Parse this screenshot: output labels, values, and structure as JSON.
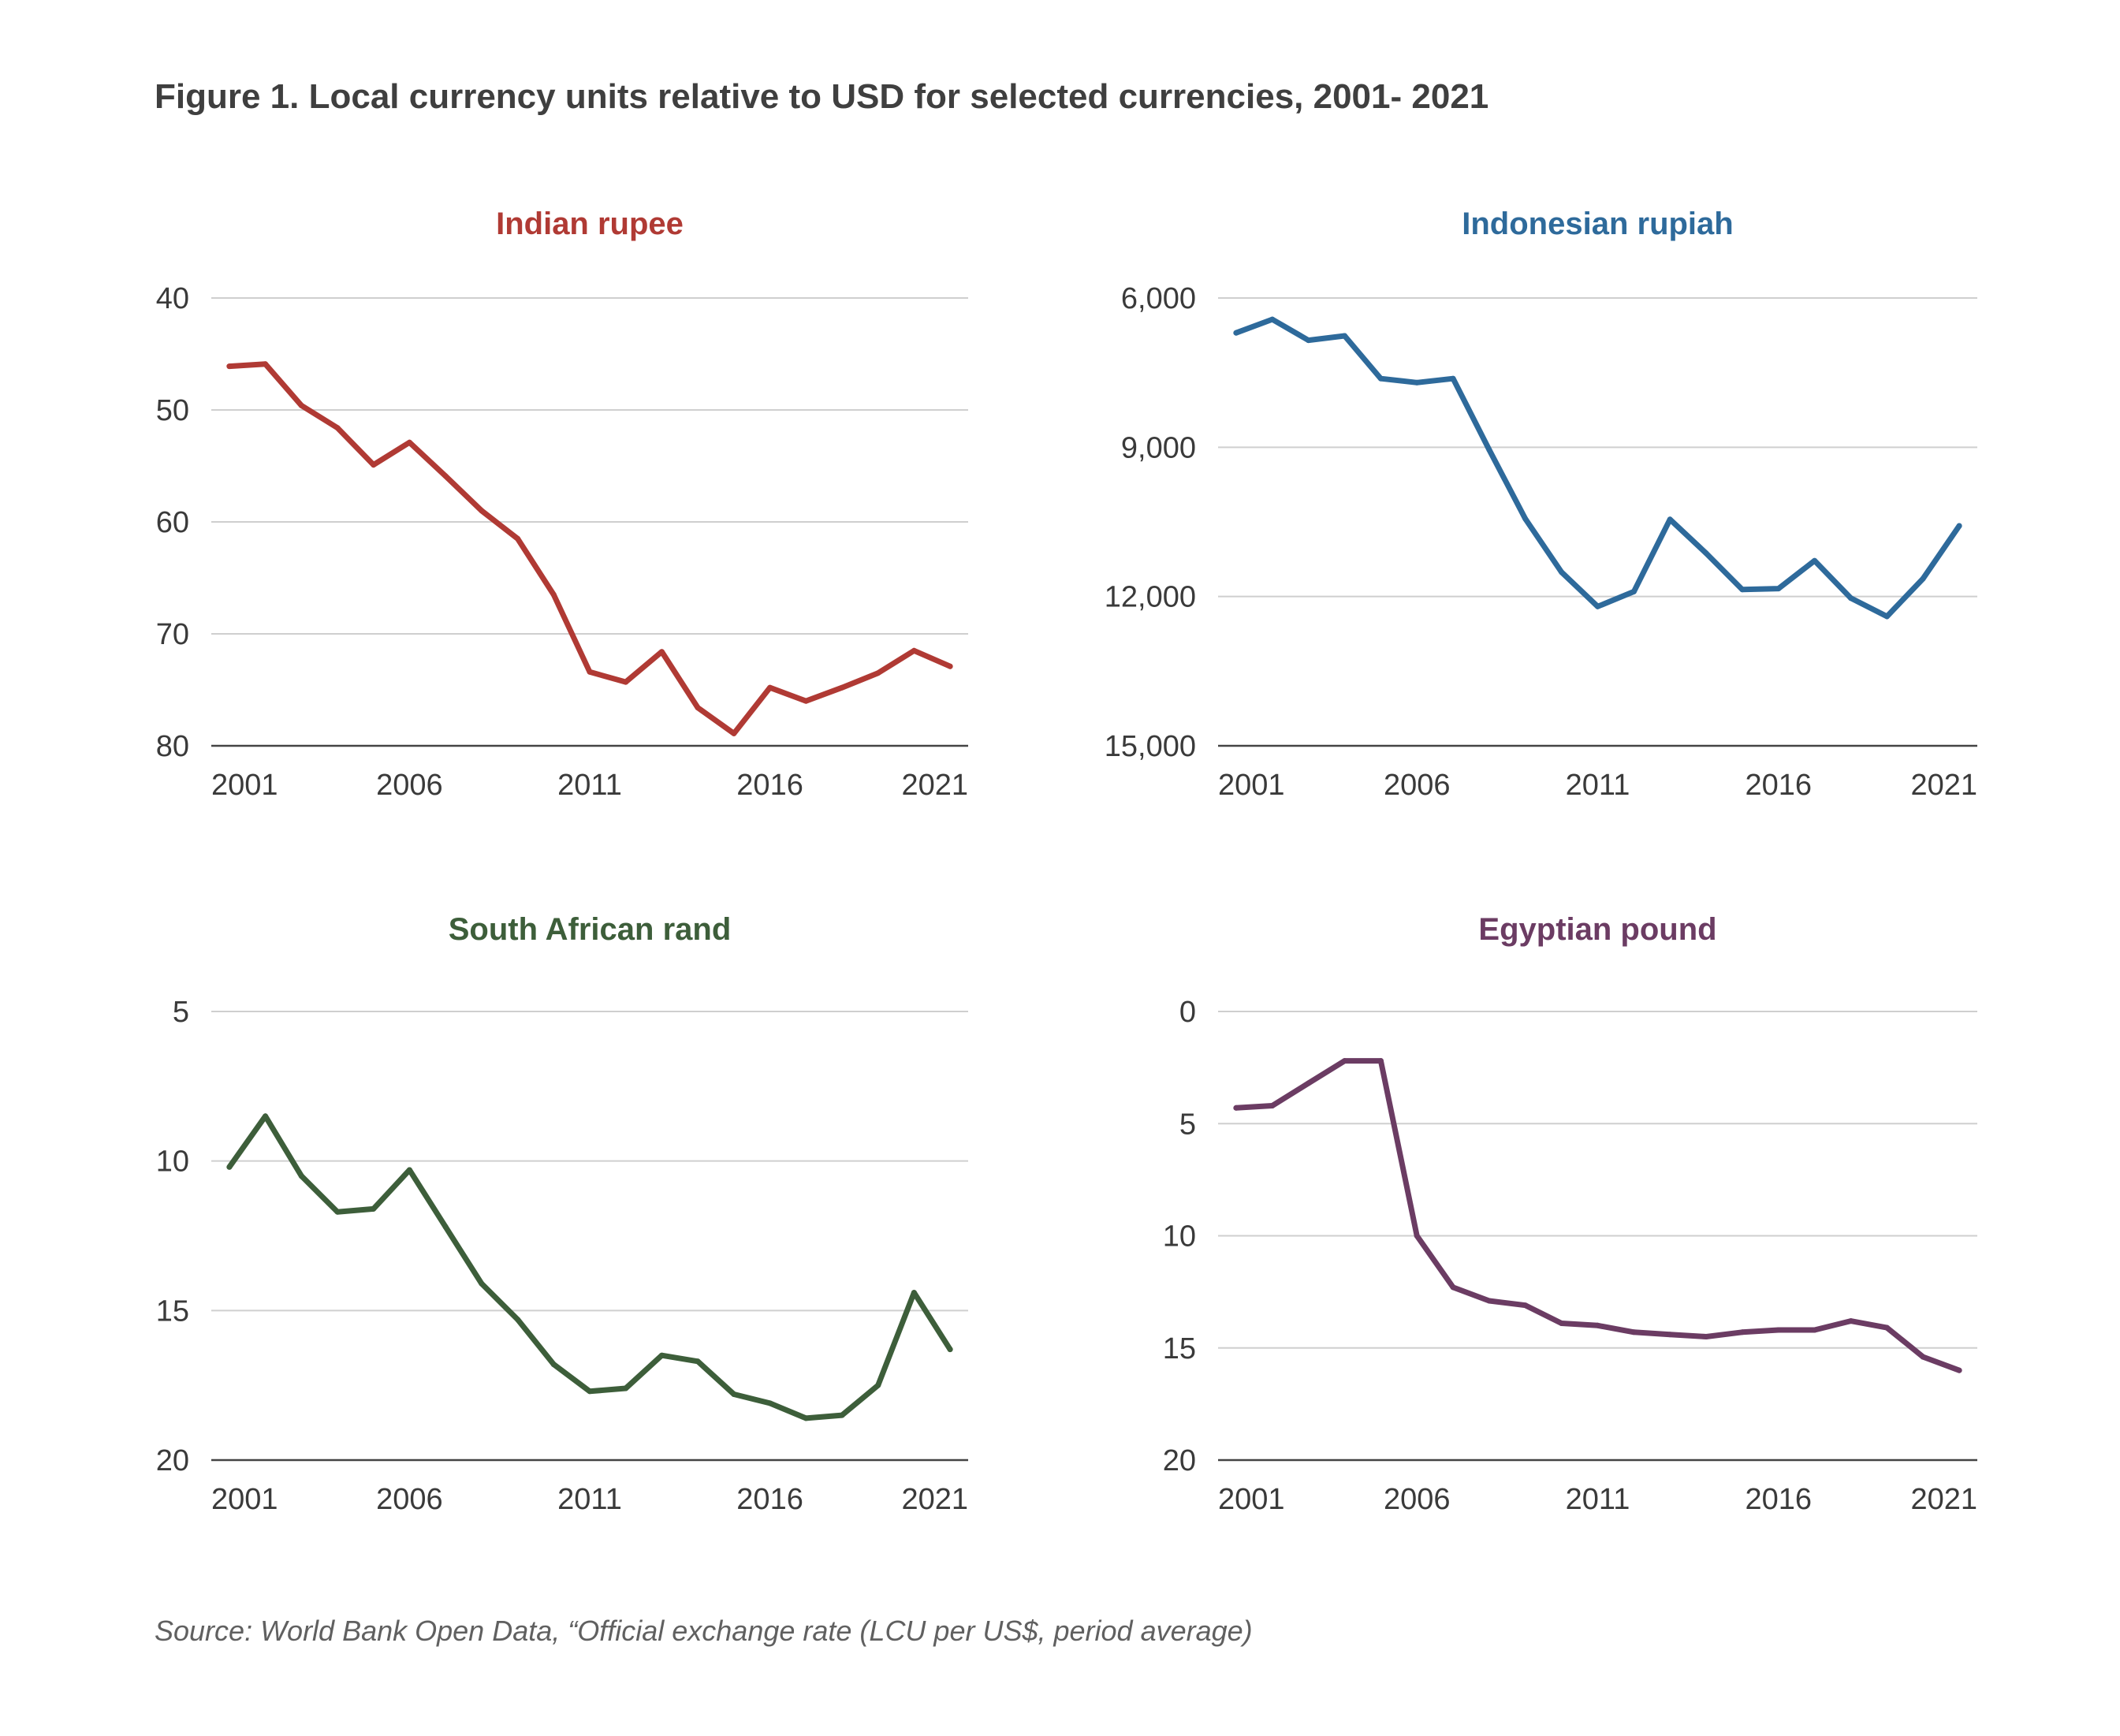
{
  "title": "Figure 1. Local currency units relative to USD for selected currencies, 2001- 2021",
  "source": "Source: World Bank Open Data, “Official exchange rate (LCU per US$, period average)",
  "chart_data": [
    {
      "type": "line",
      "title": "Indian rupee",
      "color": "#b03a34",
      "inverted_y": true,
      "ylim": [
        40,
        80
      ],
      "yticks": [
        40,
        50,
        60,
        70,
        80
      ],
      "ytick_labels": [
        "40",
        "50",
        "60",
        "70",
        "80"
      ],
      "xlim": [
        2000.5,
        2021.5
      ],
      "xticks": [
        2001,
        2006,
        2011,
        2016,
        2021
      ],
      "xtick_labels": [
        "2001",
        "2006",
        "2011",
        "2016",
        "2021"
      ],
      "grid": true,
      "x": [
        2001,
        2002,
        2003,
        2004,
        2005,
        2006,
        2007,
        2008,
        2009,
        2010,
        2011,
        2012,
        2013,
        2014,
        2015,
        2016,
        2017,
        2018,
        2019,
        2020,
        2021
      ],
      "series": [
        {
          "values": [
            46.1,
            45.9,
            49.6,
            51.6,
            54.9,
            52.9,
            55.9,
            59.0,
            61.5,
            66.5,
            73.4,
            74.3,
            71.6,
            76.6,
            78.9,
            74.8,
            76.0,
            74.8,
            73.5,
            71.5,
            72.9
          ]
        }
      ]
    },
    {
      "type": "line",
      "title": "Indonesian rupiah",
      "color": "#2e6a9b",
      "inverted_y": true,
      "ylim": [
        6000,
        15000
      ],
      "yticks": [
        6000,
        9000,
        12000,
        15000
      ],
      "ytick_labels": [
        "6,000",
        "9,000",
        "12,000",
        "15,000"
      ],
      "xlim": [
        2000.5,
        2021.5
      ],
      "xticks": [
        2001,
        2006,
        2011,
        2016,
        2021
      ],
      "xtick_labels": [
        "2001",
        "2006",
        "2011",
        "2016",
        "2021"
      ],
      "grid": true,
      "x": [
        2001,
        2002,
        2003,
        2004,
        2005,
        2006,
        2007,
        2008,
        2009,
        2010,
        2011,
        2012,
        2013,
        2014,
        2015,
        2016,
        2017,
        2018,
        2019,
        2020,
        2021
      ],
      "series": [
        {
          "values": [
            6700,
            6430,
            6850,
            6760,
            7620,
            7700,
            7620,
            9050,
            10440,
            11510,
            12200,
            11900,
            10450,
            11130,
            11860,
            11840,
            11280,
            12030,
            12400,
            11640,
            10580
          ]
        }
      ]
    },
    {
      "type": "line",
      "title": "South African rand",
      "color": "#3d5e3a",
      "inverted_y": true,
      "ylim": [
        5,
        20
      ],
      "yticks": [
        5,
        10,
        15,
        20
      ],
      "ytick_labels": [
        "5",
        "10",
        "15",
        "20"
      ],
      "xlim": [
        2000.5,
        2021.5
      ],
      "xticks": [
        2001,
        2006,
        2011,
        2016,
        2021
      ],
      "xtick_labels": [
        "2001",
        "2006",
        "2011",
        "2016",
        "2021"
      ],
      "grid": true,
      "x": [
        2001,
        2002,
        2003,
        2004,
        2005,
        2006,
        2007,
        2008,
        2009,
        2010,
        2011,
        2012,
        2013,
        2014,
        2015,
        2016,
        2017,
        2018,
        2019,
        2020,
        2021
      ],
      "series": [
        {
          "values": [
            10.2,
            8.5,
            10.5,
            11.7,
            11.6,
            10.3,
            12.2,
            14.1,
            15.3,
            16.8,
            17.7,
            17.6,
            16.5,
            16.7,
            17.8,
            18.1,
            18.6,
            18.5,
            17.5,
            14.4,
            16.3
          ]
        }
      ]
    },
    {
      "type": "line",
      "title": "Egyptian pound",
      "color": "#6b3c63",
      "inverted_y": true,
      "ylim": [
        0,
        20
      ],
      "yticks": [
        0,
        5,
        10,
        15,
        20
      ],
      "ytick_labels": [
        "0",
        "5",
        "10",
        "15",
        "20"
      ],
      "xlim": [
        2000.5,
        2021.5
      ],
      "xticks": [
        2001,
        2006,
        2011,
        2016,
        2021
      ],
      "xtick_labels": [
        "2001",
        "2006",
        "2011",
        "2016",
        "2021"
      ],
      "grid": true,
      "x": [
        2001,
        2002,
        2003,
        2004,
        2005,
        2006,
        2007,
        2008,
        2009,
        2010,
        2011,
        2012,
        2013,
        2014,
        2015,
        2016,
        2017,
        2018,
        2019,
        2020,
        2021
      ],
      "series": [
        {
          "values": [
            4.3,
            4.2,
            3.2,
            2.2,
            2.2,
            10.0,
            12.3,
            12.9,
            13.1,
            13.9,
            14.0,
            14.3,
            14.4,
            14.5,
            14.3,
            14.2,
            14.2,
            13.8,
            14.1,
            15.4,
            16.0
          ]
        }
      ]
    }
  ]
}
